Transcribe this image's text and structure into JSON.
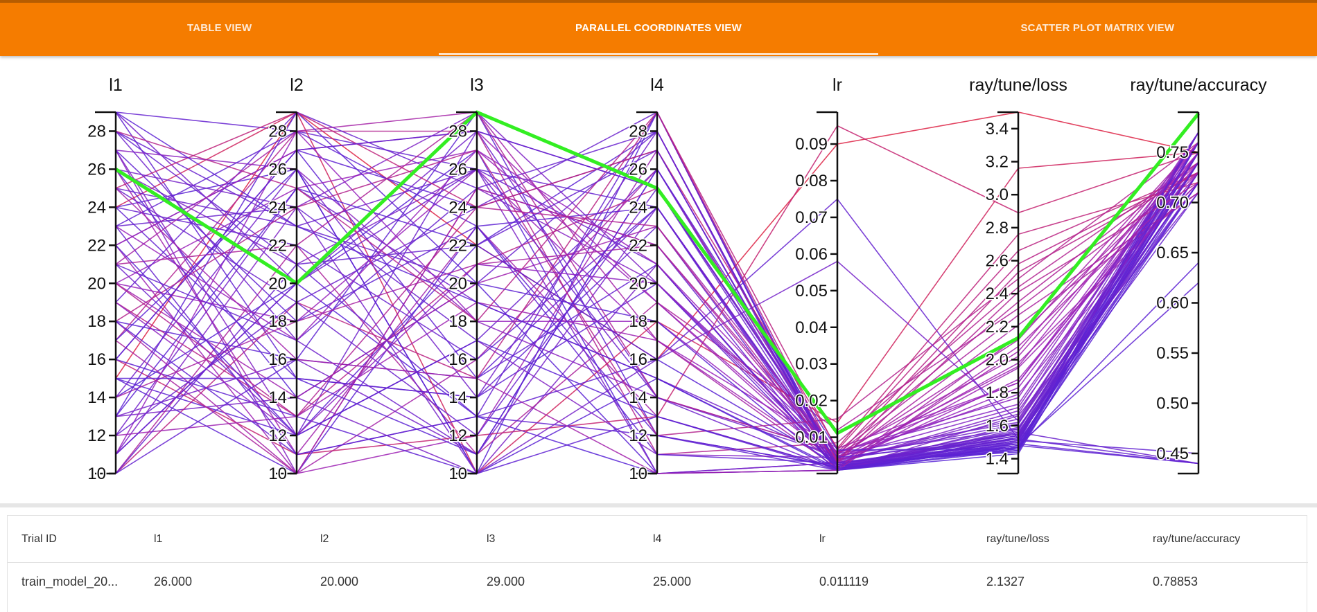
{
  "tabs": [
    {
      "label": "TABLE VIEW",
      "active": false
    },
    {
      "label": "PARALLEL COORDINATES VIEW",
      "active": true
    },
    {
      "label": "SCATTER PLOT MATRIX VIEW",
      "active": false
    }
  ],
  "colors": {
    "tab_bar": "#f57c00",
    "highlight_line": "#33ee22",
    "line_low": "#4422dd",
    "line_mid": "#9922bb",
    "line_high": "#dd2244"
  },
  "chart_data": {
    "type": "parallel-coordinates",
    "axes": [
      {
        "name": "l1",
        "range": [
          10,
          29
        ],
        "ticks": [
          10,
          12,
          14,
          16,
          18,
          20,
          22,
          24,
          26,
          28
        ],
        "tick_format": "int"
      },
      {
        "name": "l2",
        "range": [
          10,
          29
        ],
        "ticks": [
          10,
          12,
          14,
          16,
          18,
          20,
          22,
          24,
          26,
          28
        ],
        "tick_format": "int"
      },
      {
        "name": "l3",
        "range": [
          10,
          29
        ],
        "ticks": [
          10,
          12,
          14,
          16,
          18,
          20,
          22,
          24,
          26,
          28
        ],
        "tick_format": "int"
      },
      {
        "name": "l4",
        "range": [
          10,
          29
        ],
        "ticks": [
          10,
          12,
          14,
          16,
          18,
          20,
          22,
          24,
          26,
          28
        ],
        "tick_format": "int"
      },
      {
        "name": "lr",
        "range": [
          0.0001,
          0.0987
        ],
        "ticks": [
          0.01,
          0.02,
          0.03,
          0.04,
          0.05,
          0.06,
          0.07,
          0.08,
          0.09
        ],
        "tick_format": "2dp"
      },
      {
        "name": "ray/tune/loss",
        "range": [
          1.31,
          3.5
        ],
        "ticks": [
          1.4,
          1.6,
          1.8,
          2.0,
          2.2,
          2.4,
          2.6,
          2.8,
          3.0,
          3.2,
          3.4
        ],
        "tick_format": "1dp"
      },
      {
        "name": "ray/tune/accuracy",
        "range": [
          0.43,
          0.79
        ],
        "ticks": [
          0.45,
          0.5,
          0.55,
          0.6,
          0.65,
          0.7,
          0.75
        ],
        "tick_format": "2dp"
      }
    ],
    "highlighted_trial": {
      "trial_id": "train_model_20...",
      "values": [
        26,
        20,
        29,
        25,
        0.011119,
        2.1327,
        0.78853
      ]
    },
    "trials": [
      [
        29,
        28,
        26,
        24,
        0.003,
        1.52,
        0.76
      ],
      [
        24,
        26,
        10,
        29,
        0.002,
        1.46,
        0.77
      ],
      [
        21,
        12,
        28,
        14,
        0.005,
        1.58,
        0.74
      ],
      [
        15,
        29,
        22,
        16,
        0.09,
        3.5,
        0.75
      ],
      [
        11,
        20,
        13,
        10,
        0.001,
        1.43,
        0.75
      ],
      [
        27,
        10,
        25,
        20,
        0.006,
        1.73,
        0.76
      ],
      [
        18,
        16,
        29,
        12,
        0.002,
        1.48,
        0.44
      ],
      [
        23,
        24,
        17,
        26,
        0.004,
        1.55,
        0.73
      ],
      [
        13,
        14,
        10,
        21,
        0.001,
        1.66,
        0.71
      ],
      [
        28,
        23,
        20,
        28,
        0.0025,
        1.54,
        0.72
      ],
      [
        20,
        18,
        26,
        17,
        0.007,
        1.86,
        0.75
      ],
      [
        16,
        27,
        15,
        24,
        0.003,
        1.49,
        0.74
      ],
      [
        26,
        11,
        23,
        13,
        0.0015,
        2.05,
        0.76
      ],
      [
        10,
        22,
        11,
        19,
        0.012,
        2.31,
        0.73
      ],
      [
        25,
        19,
        24,
        29,
        0.001,
        1.56,
        0.44
      ],
      [
        12,
        25,
        19,
        15,
        0.004,
        1.61,
        0.77
      ],
      [
        22,
        10,
        12,
        27,
        0.002,
        1.95,
        0.72
      ],
      [
        17,
        28,
        28,
        11,
        0.0085,
        2.44,
        0.74
      ],
      [
        29,
        15,
        14,
        23,
        0.0015,
        1.51,
        0.75
      ],
      [
        14,
        20,
        27,
        10,
        0.003,
        1.44,
        0.76
      ],
      [
        19,
        13,
        21,
        25,
        0.005,
        2.58,
        0.73
      ],
      [
        24,
        29,
        10,
        18,
        0.014,
        3.16,
        0.75
      ],
      [
        21,
        17,
        25,
        22,
        0.001,
        1.53,
        0.71
      ],
      [
        27,
        26,
        18,
        14,
        0.006,
        1.77,
        0.77
      ],
      [
        15,
        12,
        22,
        28,
        0.002,
        1.47,
        0.64
      ],
      [
        11,
        24,
        29,
        20,
        0.003,
        1.69,
        0.74
      ],
      [
        28,
        21,
        13,
        16,
        0.075,
        1.52,
        0.73
      ],
      [
        18,
        10,
        16,
        26,
        0.0045,
        2.12,
        0.76
      ],
      [
        23,
        28,
        23,
        12,
        0.001,
        1.5,
        0.72
      ],
      [
        13,
        16,
        11,
        24,
        0.0035,
        1.64,
        0.75
      ],
      [
        20,
        25,
        27,
        19,
        0.0025,
        1.88,
        0.74
      ],
      [
        26,
        14,
        20,
        10,
        0.001,
        1.45,
        0.77
      ],
      [
        10,
        19,
        15,
        29,
        0.0065,
        2.66,
        0.73
      ],
      [
        25,
        23,
        26,
        21,
        0.0015,
        1.57,
        0.76
      ],
      [
        16,
        11,
        12,
        13,
        0.095,
        2.89,
        0.75
      ],
      [
        22,
        27,
        24,
        27,
        0.002,
        1.49,
        0.44
      ],
      [
        12,
        13,
        19,
        17,
        0.003,
        1.98,
        0.72
      ],
      [
        29,
        20,
        28,
        25,
        0.0055,
        1.62,
        0.74
      ],
      [
        17,
        26,
        10,
        15,
        0.001,
        1.46,
        0.75
      ],
      [
        14,
        18,
        21,
        22,
        0.004,
        2.21,
        0.71
      ],
      [
        27,
        12,
        17,
        11,
        0.0045,
        1.71,
        0.76
      ],
      [
        19,
        29,
        25,
        28,
        0.002,
        1.54,
        0.73
      ],
      [
        24,
        15,
        14,
        20,
        0.0015,
        1.51,
        0.77
      ],
      [
        21,
        22,
        29,
        14,
        0.006,
        2.35,
        0.74
      ],
      [
        15,
        10,
        23,
        24,
        0.001,
        1.48,
        0.62
      ],
      [
        11,
        28,
        18,
        18,
        0.0035,
        1.83,
        0.75
      ],
      [
        28,
        17,
        11,
        26,
        0.002,
        1.59,
        0.72
      ],
      [
        18,
        24,
        27,
        12,
        0.015,
        2.49,
        0.76
      ],
      [
        23,
        11,
        13,
        29,
        0.001,
        1.53,
        0.74
      ],
      [
        13,
        25,
        22,
        16,
        0.0025,
        1.45,
        0.73
      ],
      [
        20,
        14,
        20,
        23,
        0.0055,
        2.02,
        0.75
      ],
      [
        26,
        21,
        26,
        10,
        0.003,
        1.67,
        0.77
      ],
      [
        10,
        16,
        15,
        21,
        0.0015,
        1.52,
        0.44
      ],
      [
        25,
        29,
        24,
        27,
        0.007,
        2.76,
        0.72
      ],
      [
        16,
        13,
        10,
        13,
        0.001,
        1.49,
        0.74
      ],
      [
        22,
        27,
        28,
        19,
        0.004,
        1.96,
        0.76
      ],
      [
        12,
        19,
        12,
        25,
        0.0025,
        1.56,
        0.73
      ],
      [
        29,
        23,
        19,
        15,
        0.0015,
        1.47,
        0.75
      ],
      [
        17,
        10,
        25,
        22,
        0.0055,
        2.27,
        0.71
      ],
      [
        14,
        26,
        14,
        28,
        0.001,
        1.61,
        0.74
      ],
      [
        27,
        18,
        23,
        11,
        0.003,
        1.5,
        0.77
      ],
      [
        19,
        12,
        21,
        20,
        0.0045,
        1.79,
        0.73
      ],
      [
        24,
        22,
        16,
        24,
        0.002,
        1.54,
        0.76
      ],
      [
        21,
        28,
        29,
        17,
        0.0015,
        2.14,
        0.74
      ],
      [
        15,
        15,
        11,
        26,
        0.0065,
        1.46,
        0.72
      ],
      [
        11,
        20,
        26,
        14,
        0.001,
        1.58,
        0.75
      ],
      [
        28,
        25,
        18,
        29,
        0.0035,
        2.53,
        0.73
      ],
      [
        18,
        11,
        13,
        12,
        0.002,
        1.51,
        0.45
      ],
      [
        23,
        17,
        27,
        21,
        0.0055,
        1.86,
        0.76
      ],
      [
        13,
        29,
        20,
        18,
        0.001,
        1.48,
        0.74
      ],
      [
        20,
        13,
        24,
        23,
        0.003,
        2.41,
        0.72
      ],
      [
        26,
        24,
        10,
        16,
        0.058,
        1.63,
        0.75
      ],
      [
        10,
        21,
        22,
        27,
        0.0025,
        1.55,
        0.77
      ],
      [
        25,
        16,
        15,
        10,
        0.001,
        2.08,
        0.73
      ],
      [
        16,
        27,
        28,
        25,
        0.0045,
        1.52,
        0.74
      ],
      [
        22,
        12,
        17,
        13,
        0.0015,
        1.47,
        0.76
      ]
    ]
  },
  "table": {
    "headers": [
      "Trial ID",
      "l1",
      "l2",
      "l3",
      "l4",
      "lr",
      "ray/tune/loss",
      "ray/tune/accuracy"
    ],
    "row": [
      "train_model_20...",
      "26.000",
      "20.000",
      "29.000",
      "25.000",
      "0.011119",
      "2.1327",
      "0.78853"
    ]
  }
}
